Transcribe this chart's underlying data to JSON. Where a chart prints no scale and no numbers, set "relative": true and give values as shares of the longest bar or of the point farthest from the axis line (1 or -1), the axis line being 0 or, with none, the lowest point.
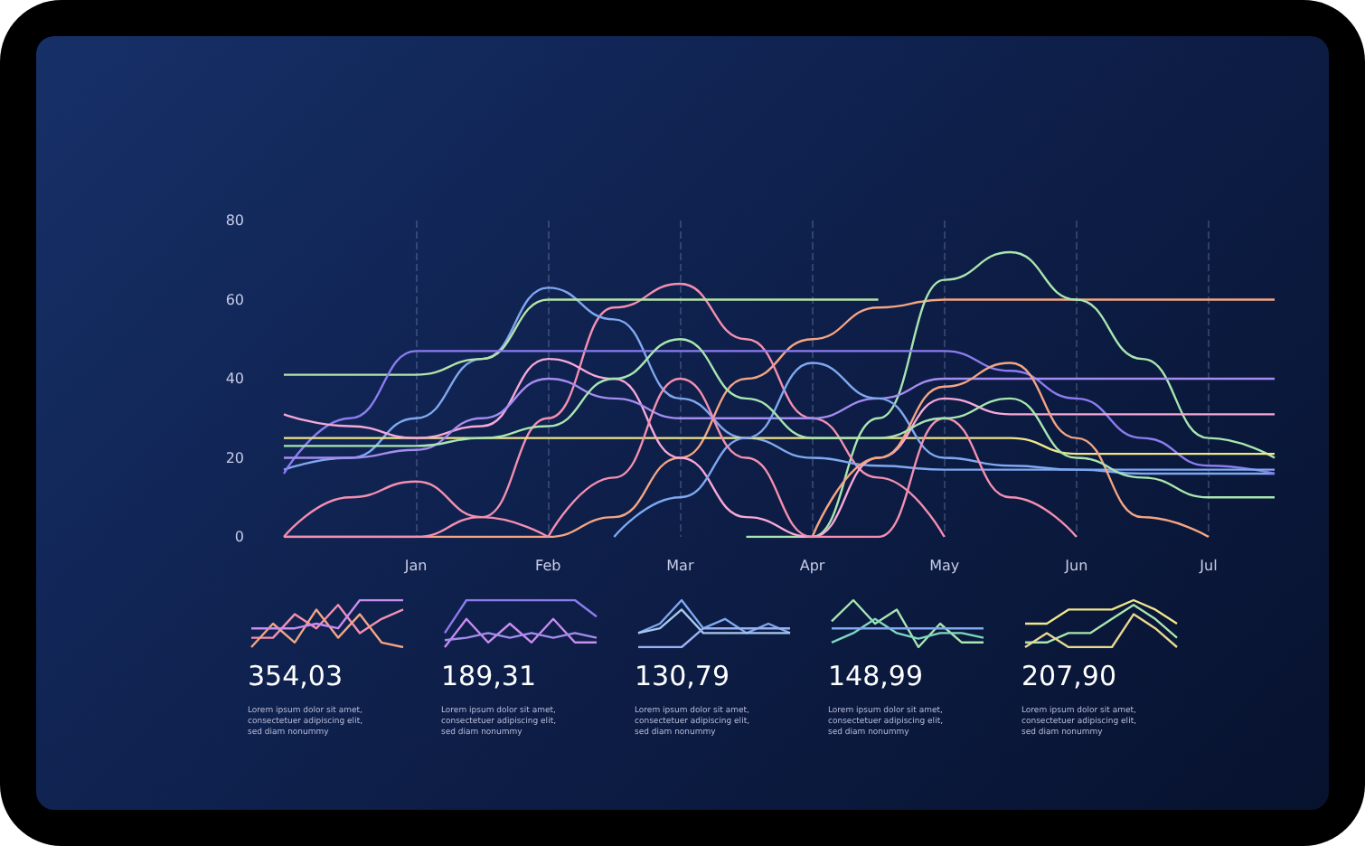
{
  "chart_data": [
    {
      "type": "line",
      "categories": [
        null,
        null,
        "Jan",
        null,
        "Feb",
        null,
        "Mar",
        null,
        "Apr",
        null,
        "May",
        null,
        "Jun",
        null,
        "Jul",
        null
      ],
      "ylim": [
        0,
        80
      ],
      "yticks": [
        0,
        20,
        40,
        60,
        80
      ],
      "grid": "x",
      "marker": "none",
      "series": [
        {
          "color": "#f4a582",
          "values": [
            0,
            0,
            0,
            0,
            0,
            5,
            20,
            40,
            50,
            58,
            60,
            60,
            60,
            60,
            60,
            60
          ]
        },
        {
          "color": "#a8e6b0",
          "values": [
            null,
            null,
            null,
            null,
            null,
            null,
            null,
            0,
            0,
            30,
            65,
            72,
            60,
            45,
            25,
            20
          ]
        },
        {
          "color": "#f48fb1",
          "values": [
            0,
            0,
            0,
            5,
            30,
            58,
            64,
            50,
            30,
            15,
            0,
            null,
            null,
            null,
            null,
            null
          ]
        },
        {
          "color": "#7fa8f0",
          "values": [
            17,
            20,
            30,
            45,
            63,
            55,
            35,
            25,
            20,
            18,
            17,
            17,
            17,
            16,
            16,
            16
          ]
        },
        {
          "color": "#b5e3a8",
          "values": [
            41,
            41,
            41,
            45,
            60,
            60,
            60,
            60,
            60,
            60,
            null,
            null,
            null,
            null,
            null,
            null
          ]
        },
        {
          "color": "#8c7cf0",
          "values": [
            16,
            30,
            47,
            47,
            47,
            47,
            47,
            47,
            47,
            47,
            47,
            42,
            35,
            25,
            18,
            16
          ]
        },
        {
          "color": "#f48fb1",
          "values": [
            0,
            10,
            14,
            5,
            0,
            null,
            null,
            null,
            null,
            null,
            null,
            null,
            null,
            null,
            null,
            null
          ]
        },
        {
          "color": "#f0e68c",
          "values": [
            25,
            25,
            25,
            25,
            25,
            25,
            25,
            25,
            25,
            25,
            25,
            25,
            21,
            21,
            21,
            21
          ]
        },
        {
          "color": "#f7a8d8",
          "values": [
            31,
            28,
            25,
            28,
            45,
            40,
            20,
            5,
            0,
            20,
            35,
            31,
            31,
            31,
            31,
            31
          ]
        },
        {
          "color": "#a58cf0",
          "values": [
            20,
            20,
            22,
            30,
            40,
            35,
            30,
            30,
            30,
            35,
            40,
            40,
            40,
            40,
            40,
            40
          ]
        },
        {
          "color": "#7fa8f0",
          "values": [
            null,
            null,
            null,
            null,
            null,
            0,
            10,
            25,
            44,
            35,
            20,
            18,
            17,
            17,
            17,
            17
          ]
        },
        {
          "color": "#f4a582",
          "values": [
            null,
            null,
            null,
            null,
            null,
            null,
            null,
            null,
            0,
            20,
            38,
            44,
            25,
            5,
            0,
            null
          ]
        },
        {
          "color": "#f48fb1",
          "values": [
            null,
            null,
            null,
            null,
            0,
            15,
            40,
            20,
            0,
            0,
            30,
            10,
            0,
            null,
            null,
            null
          ]
        },
        {
          "color": "#a8e6b0",
          "values": [
            23,
            23,
            23,
            25,
            28,
            40,
            50,
            35,
            25,
            25,
            30,
            35,
            20,
            15,
            10,
            10
          ]
        }
      ]
    },
    {
      "type": "line",
      "relative": true,
      "title": "354,03",
      "annotations": [
        "Lorem ipsum dolor sit amet,\nconsectetuer adipiscing elit,\nsed diam nonummy"
      ],
      "categories": [
        null,
        null,
        null,
        null,
        null,
        null,
        null,
        null
      ],
      "series": [
        {
          "color": "#f48fb1",
          "values": [
            0.2,
            0.2,
            0.7,
            0.4,
            0.9,
            0.3,
            0.6,
            0.8
          ]
        },
        {
          "color": "#f4a582",
          "values": [
            0,
            0.5,
            0.1,
            0.8,
            0.2,
            0.7,
            0.1,
            0
          ]
        },
        {
          "color": "#c98cf0",
          "values": [
            0.4,
            0.4,
            0.4,
            0.5,
            0.4,
            1,
            1,
            1
          ]
        }
      ]
    },
    {
      "type": "line",
      "relative": true,
      "title": "189,31",
      "annotations": [
        "Lorem ipsum dolor sit amet,\nconsectetuer adipiscing elit,\nsed diam nonummy"
      ],
      "categories": [
        null,
        null,
        null,
        null,
        null,
        null,
        null,
        null
      ],
      "series": [
        {
          "color": "#8c7cf0",
          "values": [
            0.3,
            1,
            1,
            1,
            1,
            1,
            1,
            0.65
          ]
        },
        {
          "color": "#c98cf0",
          "values": [
            0,
            0.6,
            0.1,
            0.5,
            0.1,
            0.6,
            0.1,
            0.1
          ]
        },
        {
          "color": "#a58cf0",
          "values": [
            0.15,
            0.2,
            0.3,
            0.2,
            0.3,
            0.2,
            0.3,
            0.2
          ]
        }
      ]
    },
    {
      "type": "line",
      "relative": true,
      "title": "130,79",
      "annotations": [
        "Lorem ipsum dolor sit amet,\nconsectetuer adipiscing elit,\nsed diam nonummy"
      ],
      "categories": [
        null,
        null,
        null,
        null,
        null,
        null,
        null,
        null
      ],
      "series": [
        {
          "color": "#7fa8f0",
          "values": [
            0.3,
            0.5,
            1,
            0.4,
            0.6,
            0.3,
            0.5,
            0.3
          ]
        },
        {
          "color": "#a8c8f0",
          "values": [
            0.3,
            0.4,
            0.8,
            0.3,
            0.3,
            0.3,
            0.3,
            0.3
          ]
        },
        {
          "color": "#9ab0f0",
          "values": [
            0,
            0,
            0,
            0.4,
            0.4,
            0.4,
            0.4,
            0.4
          ]
        }
      ]
    },
    {
      "type": "line",
      "relative": true,
      "title": "148,99",
      "annotations": [
        "Lorem ipsum dolor sit amet,\nconsectetuer adipiscing elit,\nsed diam nonummy"
      ],
      "categories": [
        null,
        null,
        null,
        null,
        null,
        null,
        null,
        null
      ],
      "series": [
        {
          "color": "#a8e6b0",
          "values": [
            0.55,
            1,
            0.5,
            0.8,
            0,
            0.5,
            0.1,
            0.1
          ]
        },
        {
          "color": "#7fd8c0",
          "values": [
            0.1,
            0.3,
            0.6,
            0.3,
            0.18,
            0.3,
            0.3,
            0.2
          ]
        },
        {
          "color": "#7fa8f0",
          "values": [
            0.4,
            0.4,
            0.4,
            0.4,
            0.4,
            0.4,
            0.4,
            0.4
          ]
        }
      ]
    },
    {
      "type": "line",
      "relative": true,
      "title": "207,90",
      "annotations": [
        "Lorem ipsum dolor sit amet,\nconsectetuer adipiscing elit,\nsed diam nonummy"
      ],
      "categories": [
        null,
        null,
        null,
        null,
        null,
        null,
        null,
        null
      ],
      "series": [
        {
          "color": "#f0e68c",
          "values": [
            0.5,
            0.5,
            0.8,
            0.8,
            0.8,
            1,
            0.8,
            0.5
          ]
        },
        {
          "color": "#a8e6b0",
          "values": [
            0.1,
            0.1,
            0.3,
            0.3,
            0.6,
            0.9,
            0.6,
            0.2
          ]
        },
        {
          "color": "#e8d890",
          "values": [
            0,
            0.3,
            0,
            0,
            0,
            0.7,
            0.4,
            0
          ]
        }
      ]
    }
  ]
}
